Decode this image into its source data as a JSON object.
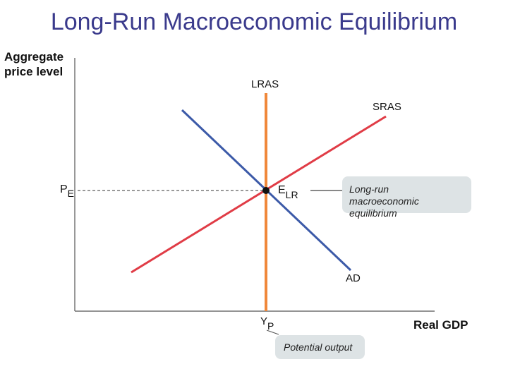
{
  "title": "Long-Run Macroeconomic Equilibrium",
  "axes": {
    "y_label_line1": "Aggregate",
    "y_label_line2": "price level",
    "x_label": "Real GDP"
  },
  "curves": {
    "lras": "LRAS",
    "sras": "SRAS",
    "ad": "AD"
  },
  "markers": {
    "price_main": "P",
    "price_sub": "E",
    "eq_main": "E",
    "eq_sub": "LR",
    "output_main": "Y",
    "output_sub": "P"
  },
  "callouts": {
    "equilibrium_line1": "Long-run",
    "equilibrium_line2": "macroeconomic",
    "equilibrium_line3": "equilibrium",
    "potential_output": "Potential output"
  },
  "colors": {
    "lras": "#f0883a",
    "sras": "#e03c46",
    "ad": "#3c5aa8",
    "title": "#3a3a8c"
  }
}
